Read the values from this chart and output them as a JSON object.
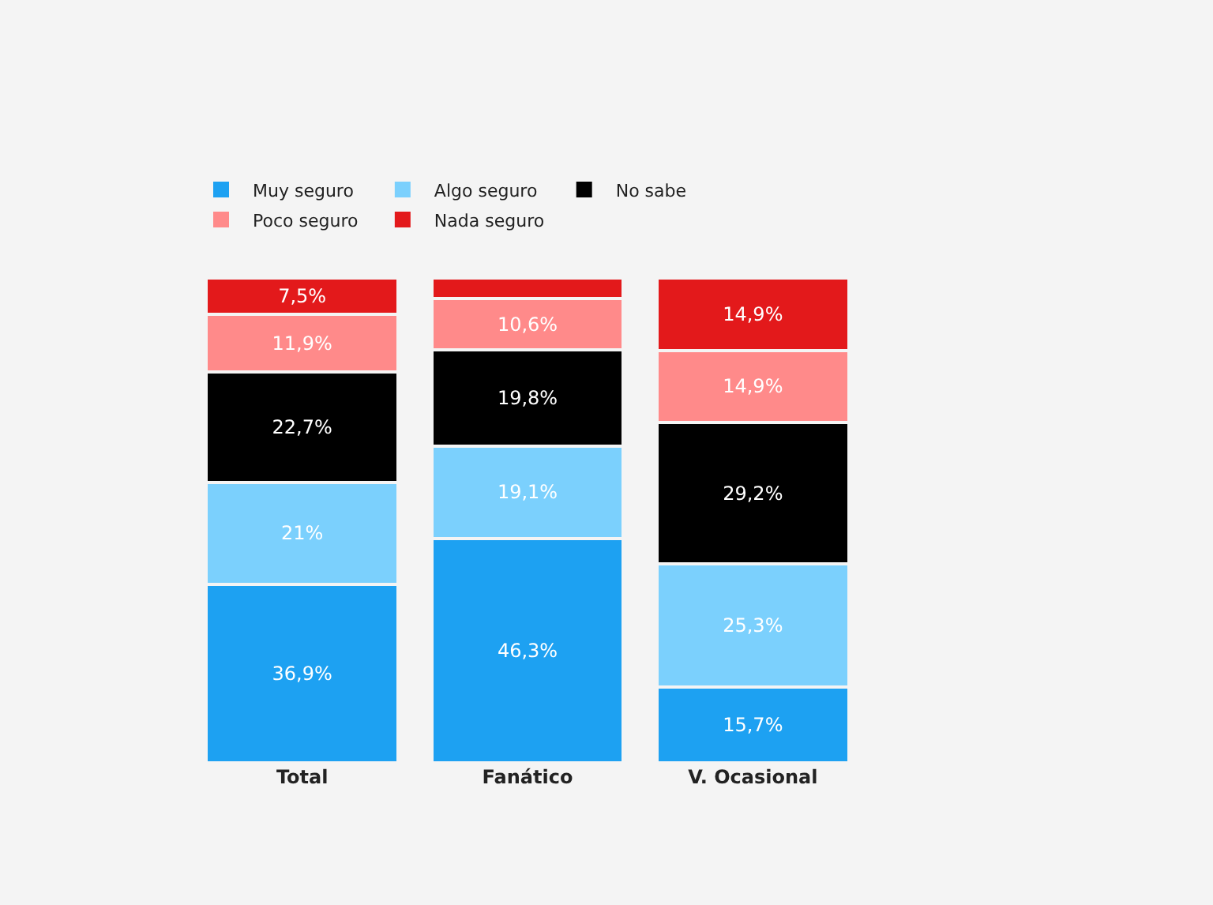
{
  "chart_data": {
    "type": "bar",
    "stacked": true,
    "legend": "top left",
    "categories": [
      "Total",
      "Fanático",
      "V. Ocasional"
    ],
    "series": [
      {
        "name": "Muy seguro",
        "color": "#1da1f2",
        "values": [
          36.9,
          46.3,
          15.7
        ],
        "value_labels": [
          "36,9%",
          "46,3%",
          "15,7%"
        ]
      },
      {
        "name": "Algo seguro",
        "color": "#7bd0fd",
        "values": [
          21,
          19.1,
          25.3
        ],
        "value_labels": [
          "21%",
          "19,1%",
          "25,3%"
        ]
      },
      {
        "name": "No sabe",
        "color": "#000000",
        "values": [
          22.7,
          19.8,
          29.2
        ],
        "value_labels": [
          "22,7%",
          "19,8%",
          "29,2%"
        ]
      },
      {
        "name": "Poco seguro",
        "color": "#ff8a8a",
        "values": [
          11.9,
          10.6,
          14.9
        ],
        "value_labels": [
          "11,9%",
          "10,6%",
          "14,9%"
        ]
      },
      {
        "name": "Nada seguro",
        "color": "#e3191b",
        "values": [
          7.5,
          4.2,
          14.9
        ],
        "value_labels": [
          "7,5%",
          null,
          "14,9%"
        ]
      }
    ]
  }
}
